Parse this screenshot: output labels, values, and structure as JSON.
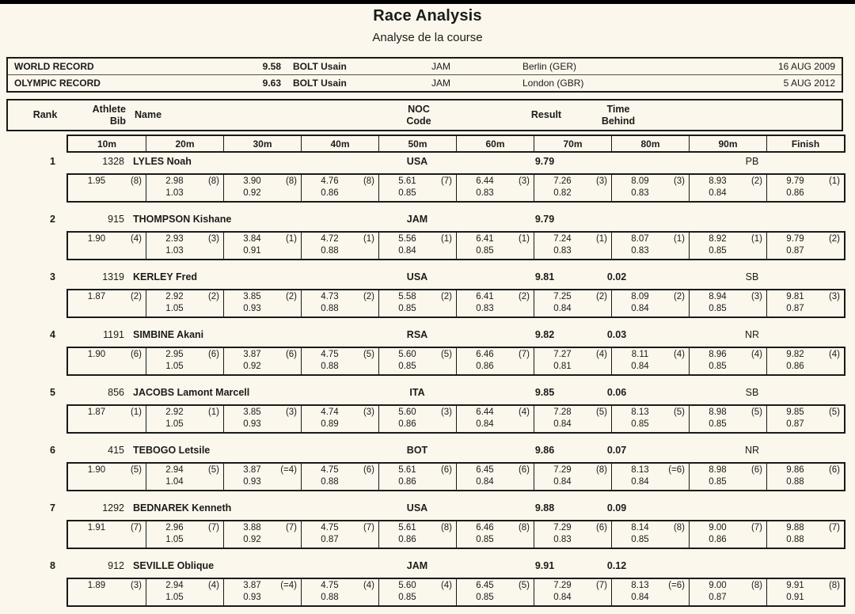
{
  "page": {
    "title": "Race Analysis",
    "subtitle": "Analyse de la course",
    "background_color": "#fcf7ec",
    "border_color": "#1a1a1a"
  },
  "records": [
    {
      "label": "WORLD RECORD",
      "time": "9.58",
      "name": "BOLT Usain",
      "noc": "JAM",
      "venue": "Berlin (GER)",
      "date": "16 AUG 2009"
    },
    {
      "label": "OLYMPIC RECORD",
      "time": "9.63",
      "name": "BOLT Usain",
      "noc": "JAM",
      "venue": "London (GBR)",
      "date": "5 AUG 2012"
    }
  ],
  "columns": {
    "rank": "Rank",
    "bib1": "Athlete",
    "bib2": "Bib",
    "name": "Name",
    "noc1": "NOC",
    "noc2": "Code",
    "result": "Result",
    "behind1": "Time",
    "behind2": "Behind"
  },
  "split_headers": [
    "10m",
    "20m",
    "30m",
    "40m",
    "50m",
    "60m",
    "70m",
    "80m",
    "90m",
    "Finish"
  ],
  "athletes": [
    {
      "rank": "1",
      "bib": "1328",
      "name": "LYLES Noah",
      "noc": "USA",
      "result": "9.79",
      "behind": "",
      "note": "PB",
      "splits": [
        {
          "t": "1.95",
          "r": "(8)",
          "s": ""
        },
        {
          "t": "2.98",
          "r": "(8)",
          "s": "1.03"
        },
        {
          "t": "3.90",
          "r": "(8)",
          "s": "0.92"
        },
        {
          "t": "4.76",
          "r": "(8)",
          "s": "0.86"
        },
        {
          "t": "5.61",
          "r": "(7)",
          "s": "0.85"
        },
        {
          "t": "6.44",
          "r": "(3)",
          "s": "0.83"
        },
        {
          "t": "7.26",
          "r": "(3)",
          "s": "0.82"
        },
        {
          "t": "8.09",
          "r": "(3)",
          "s": "0.83"
        },
        {
          "t": "8.93",
          "r": "(2)",
          "s": "0.84"
        },
        {
          "t": "9.79",
          "r": "(1)",
          "s": "0.86"
        }
      ]
    },
    {
      "rank": "2",
      "bib": "915",
      "name": "THOMPSON Kishane",
      "noc": "JAM",
      "result": "9.79",
      "behind": "",
      "note": "",
      "splits": [
        {
          "t": "1.90",
          "r": "(4)",
          "s": ""
        },
        {
          "t": "2.93",
          "r": "(3)",
          "s": "1.03"
        },
        {
          "t": "3.84",
          "r": "(1)",
          "s": "0.91"
        },
        {
          "t": "4.72",
          "r": "(1)",
          "s": "0.88"
        },
        {
          "t": "5.56",
          "r": "(1)",
          "s": "0.84"
        },
        {
          "t": "6.41",
          "r": "(1)",
          "s": "0.85"
        },
        {
          "t": "7.24",
          "r": "(1)",
          "s": "0.83"
        },
        {
          "t": "8.07",
          "r": "(1)",
          "s": "0.83"
        },
        {
          "t": "8.92",
          "r": "(1)",
          "s": "0.85"
        },
        {
          "t": "9.79",
          "r": "(2)",
          "s": "0.87"
        }
      ]
    },
    {
      "rank": "3",
      "bib": "1319",
      "name": "KERLEY Fred",
      "noc": "USA",
      "result": "9.81",
      "behind": "0.02",
      "note": "SB",
      "splits": [
        {
          "t": "1.87",
          "r": "(2)",
          "s": ""
        },
        {
          "t": "2.92",
          "r": "(2)",
          "s": "1.05"
        },
        {
          "t": "3.85",
          "r": "(2)",
          "s": "0.93"
        },
        {
          "t": "4.73",
          "r": "(2)",
          "s": "0.88"
        },
        {
          "t": "5.58",
          "r": "(2)",
          "s": "0.85"
        },
        {
          "t": "6.41",
          "r": "(2)",
          "s": "0.83"
        },
        {
          "t": "7.25",
          "r": "(2)",
          "s": "0.84"
        },
        {
          "t": "8.09",
          "r": "(2)",
          "s": "0.84"
        },
        {
          "t": "8.94",
          "r": "(3)",
          "s": "0.85"
        },
        {
          "t": "9.81",
          "r": "(3)",
          "s": "0.87"
        }
      ]
    },
    {
      "rank": "4",
      "bib": "1191",
      "name": "SIMBINE Akani",
      "noc": "RSA",
      "result": "9.82",
      "behind": "0.03",
      "note": "NR",
      "splits": [
        {
          "t": "1.90",
          "r": "(6)",
          "s": ""
        },
        {
          "t": "2.95",
          "r": "(6)",
          "s": "1.05"
        },
        {
          "t": "3.87",
          "r": "(6)",
          "s": "0.92"
        },
        {
          "t": "4.75",
          "r": "(5)",
          "s": "0.88"
        },
        {
          "t": "5.60",
          "r": "(5)",
          "s": "0.85"
        },
        {
          "t": "6.46",
          "r": "(7)",
          "s": "0.86"
        },
        {
          "t": "7.27",
          "r": "(4)",
          "s": "0.81"
        },
        {
          "t": "8.11",
          "r": "(4)",
          "s": "0.84"
        },
        {
          "t": "8.96",
          "r": "(4)",
          "s": "0.85"
        },
        {
          "t": "9.82",
          "r": "(4)",
          "s": "0.86"
        }
      ]
    },
    {
      "rank": "5",
      "bib": "856",
      "name": "JACOBS Lamont Marcell",
      "noc": "ITA",
      "result": "9.85",
      "behind": "0.06",
      "note": "SB",
      "splits": [
        {
          "t": "1.87",
          "r": "(1)",
          "s": ""
        },
        {
          "t": "2.92",
          "r": "(1)",
          "s": "1.05"
        },
        {
          "t": "3.85",
          "r": "(3)",
          "s": "0.93"
        },
        {
          "t": "4.74",
          "r": "(3)",
          "s": "0.89"
        },
        {
          "t": "5.60",
          "r": "(3)",
          "s": "0.86"
        },
        {
          "t": "6.44",
          "r": "(4)",
          "s": "0.84"
        },
        {
          "t": "7.28",
          "r": "(5)",
          "s": "0.84"
        },
        {
          "t": "8.13",
          "r": "(5)",
          "s": "0.85"
        },
        {
          "t": "8.98",
          "r": "(5)",
          "s": "0.85"
        },
        {
          "t": "9.85",
          "r": "(5)",
          "s": "0.87"
        }
      ]
    },
    {
      "rank": "6",
      "bib": "415",
      "name": "TEBOGO Letsile",
      "noc": "BOT",
      "result": "9.86",
      "behind": "0.07",
      "note": "NR",
      "splits": [
        {
          "t": "1.90",
          "r": "(5)",
          "s": ""
        },
        {
          "t": "2.94",
          "r": "(5)",
          "s": "1.04"
        },
        {
          "t": "3.87",
          "r": "(=4)",
          "s": "0.93"
        },
        {
          "t": "4.75",
          "r": "(6)",
          "s": "0.88"
        },
        {
          "t": "5.61",
          "r": "(6)",
          "s": "0.86"
        },
        {
          "t": "6.45",
          "r": "(6)",
          "s": "0.84"
        },
        {
          "t": "7.29",
          "r": "(8)",
          "s": "0.84"
        },
        {
          "t": "8.13",
          "r": "(=6)",
          "s": "0.84"
        },
        {
          "t": "8.98",
          "r": "(6)",
          "s": "0.85"
        },
        {
          "t": "9.86",
          "r": "(6)",
          "s": "0.88"
        }
      ]
    },
    {
      "rank": "7",
      "bib": "1292",
      "name": "BEDNAREK Kenneth",
      "noc": "USA",
      "result": "9.88",
      "behind": "0.09",
      "note": "",
      "splits": [
        {
          "t": "1.91",
          "r": "(7)",
          "s": ""
        },
        {
          "t": "2.96",
          "r": "(7)",
          "s": "1.05"
        },
        {
          "t": "3.88",
          "r": "(7)",
          "s": "0.92"
        },
        {
          "t": "4.75",
          "r": "(7)",
          "s": "0.87"
        },
        {
          "t": "5.61",
          "r": "(8)",
          "s": "0.86"
        },
        {
          "t": "6.46",
          "r": "(8)",
          "s": "0.85"
        },
        {
          "t": "7.29",
          "r": "(6)",
          "s": "0.83"
        },
        {
          "t": "8.14",
          "r": "(8)",
          "s": "0.85"
        },
        {
          "t": "9.00",
          "r": "(7)",
          "s": "0.86"
        },
        {
          "t": "9.88",
          "r": "(7)",
          "s": "0.88"
        }
      ]
    },
    {
      "rank": "8",
      "bib": "912",
      "name": "SEVILLE Oblique",
      "noc": "JAM",
      "result": "9.91",
      "behind": "0.12",
      "note": "",
      "splits": [
        {
          "t": "1.89",
          "r": "(3)",
          "s": ""
        },
        {
          "t": "2.94",
          "r": "(4)",
          "s": "1.05"
        },
        {
          "t": "3.87",
          "r": "(=4)",
          "s": "0.93"
        },
        {
          "t": "4.75",
          "r": "(4)",
          "s": "0.88"
        },
        {
          "t": "5.60",
          "r": "(4)",
          "s": "0.85"
        },
        {
          "t": "6.45",
          "r": "(5)",
          "s": "0.85"
        },
        {
          "t": "7.29",
          "r": "(7)",
          "s": "0.84"
        },
        {
          "t": "8.13",
          "r": "(=6)",
          "s": "0.84"
        },
        {
          "t": "9.00",
          "r": "(8)",
          "s": "0.87"
        },
        {
          "t": "9.91",
          "r": "(8)",
          "s": "0.91"
        }
      ]
    }
  ]
}
